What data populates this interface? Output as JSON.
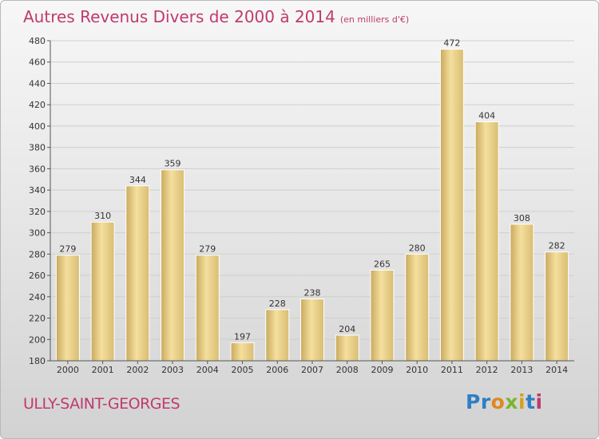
{
  "header": {
    "title": "Autres Revenus Divers de 2000 à 2014",
    "subtitle": "(en milliers d'€)"
  },
  "footer": {
    "location": "ULLY-SAINT-GEORGES",
    "logo": [
      {
        "ch": "P",
        "color": "#2f7fc4"
      },
      {
        "ch": "r",
        "color": "#2f7fc4"
      },
      {
        "ch": "o",
        "color": "#e0871f"
      },
      {
        "ch": "x",
        "color": "#7ab52f"
      },
      {
        "ch": "i",
        "color": "#d6a21a"
      },
      {
        "ch": "t",
        "color": "#2f7fc4"
      },
      {
        "ch": "i",
        "color": "#c03a6e"
      }
    ]
  },
  "colors": {
    "accent": "#c03a6e",
    "bar_light": "#f5df9e",
    "bar_dark": "#c9aa5e"
  },
  "chart_data": {
    "type": "bar",
    "categories": [
      "2000",
      "2001",
      "2002",
      "2003",
      "2004",
      "2005",
      "2006",
      "2007",
      "2008",
      "2009",
      "2010",
      "2011",
      "2012",
      "2013",
      "2014"
    ],
    "values": [
      279,
      310,
      344,
      359,
      279,
      197,
      228,
      238,
      204,
      265,
      280,
      472,
      404,
      308,
      282
    ],
    "title": "Autres Revenus Divers de 2000 à 2014",
    "ylim": [
      180,
      480
    ],
    "yticks": [
      180,
      200,
      220,
      240,
      260,
      280,
      300,
      320,
      340,
      360,
      380,
      400,
      420,
      440,
      460,
      480
    ],
    "grid": true
  }
}
